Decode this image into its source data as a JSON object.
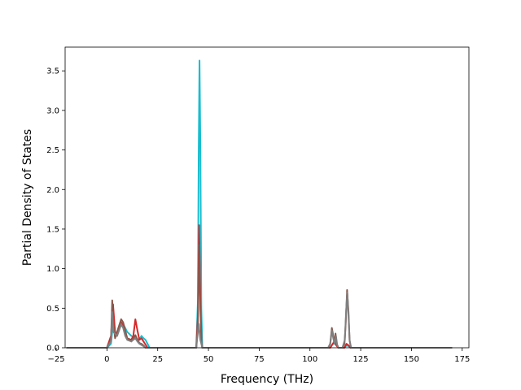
{
  "chart_data": {
    "type": "line",
    "title": "",
    "xlabel": "Frequency (THz)",
    "ylabel": "Partial Density of States",
    "xlim": [
      -20.6,
      178.3
    ],
    "ylim": [
      0.0,
      3.8
    ],
    "xticks": [
      -25,
      0,
      25,
      50,
      75,
      100,
      125,
      150,
      175
    ],
    "xtick_labels": [
      "−25",
      "0",
      "25",
      "50",
      "75",
      "100",
      "125",
      "150",
      "175"
    ],
    "yticks": [
      0.0,
      0.5,
      1.0,
      1.5,
      2.0,
      2.5,
      3.0,
      3.5
    ],
    "ytick_labels": [
      "0.0",
      "0.5",
      "1.0",
      "1.5",
      "2.0",
      "2.5",
      "3.0",
      "3.5"
    ],
    "grid": false,
    "legend": "none",
    "series": [
      {
        "color": "#17becf",
        "points": [
          [
            -20,
            0
          ],
          [
            0,
            0
          ],
          [
            2,
            0.05
          ],
          [
            3,
            0.3
          ],
          [
            4,
            0.15
          ],
          [
            6,
            0.25
          ],
          [
            8,
            0.3
          ],
          [
            10,
            0.2
          ],
          [
            12,
            0.15
          ],
          [
            14,
            0.12
          ],
          [
            16,
            0.1
          ],
          [
            17,
            0.15
          ],
          [
            18,
            0.12
          ],
          [
            19,
            0.1
          ],
          [
            20,
            0.05
          ],
          [
            21,
            0
          ],
          [
            44,
            0
          ],
          [
            44.8,
            0.6
          ],
          [
            45.2,
            2.5
          ],
          [
            45.6,
            3.63
          ],
          [
            46.0,
            2.6
          ],
          [
            46.5,
            0.5
          ],
          [
            47,
            0
          ],
          [
            110,
            0
          ],
          [
            111,
            0.04
          ],
          [
            112,
            0.06
          ],
          [
            113,
            0.03
          ],
          [
            114,
            0
          ],
          [
            117,
            0
          ],
          [
            118,
            0.03
          ],
          [
            119,
            0.02
          ],
          [
            120,
            0
          ],
          [
            170,
            0
          ]
        ]
      },
      {
        "color": "#d62728",
        "points": [
          [
            -20,
            0
          ],
          [
            0,
            0
          ],
          [
            2,
            0.15
          ],
          [
            3,
            0.55
          ],
          [
            4,
            0.2
          ],
          [
            5,
            0.15
          ],
          [
            6,
            0.25
          ],
          [
            7,
            0.32
          ],
          [
            8,
            0.28
          ],
          [
            9,
            0.2
          ],
          [
            10,
            0.12
          ],
          [
            12,
            0.1
          ],
          [
            13,
            0.15
          ],
          [
            14,
            0.36
          ],
          [
            15,
            0.22
          ],
          [
            16,
            0.1
          ],
          [
            17,
            0.12
          ],
          [
            18,
            0.08
          ],
          [
            19,
            0.04
          ],
          [
            20,
            0
          ],
          [
            44,
            0
          ],
          [
            44.8,
            0.4
          ],
          [
            45.4,
            1.55
          ],
          [
            46.0,
            0.6
          ],
          [
            46.6,
            0.05
          ],
          [
            47,
            0
          ],
          [
            110,
            0
          ],
          [
            111,
            0.04
          ],
          [
            112,
            0.08
          ],
          [
            113,
            0.03
          ],
          [
            114,
            0
          ],
          [
            117,
            0
          ],
          [
            118,
            0.05
          ],
          [
            119,
            0.03
          ],
          [
            120,
            0
          ],
          [
            170,
            0
          ]
        ]
      },
      {
        "color": "#8c564b",
        "points": [
          [
            -20,
            0
          ],
          [
            0,
            0
          ],
          [
            2,
            0.1
          ],
          [
            2.6,
            0.6
          ],
          [
            3.2,
            0.3
          ],
          [
            4,
            0.12
          ],
          [
            5,
            0.2
          ],
          [
            6,
            0.28
          ],
          [
            7,
            0.36
          ],
          [
            8,
            0.32
          ],
          [
            9,
            0.22
          ],
          [
            10,
            0.12
          ],
          [
            11,
            0.1
          ],
          [
            12,
            0.08
          ],
          [
            13,
            0.12
          ],
          [
            14,
            0.16
          ],
          [
            15,
            0.1
          ],
          [
            16,
            0.06
          ],
          [
            17,
            0.05
          ],
          [
            18,
            0.03
          ],
          [
            19,
            0
          ],
          [
            44,
            0
          ],
          [
            44.8,
            0.3
          ],
          [
            45.4,
            1.3
          ],
          [
            46.0,
            0.5
          ],
          [
            46.6,
            0.05
          ],
          [
            47,
            0
          ],
          [
            109,
            0
          ],
          [
            110,
            0.05
          ],
          [
            110.8,
            0.25
          ],
          [
            111.5,
            0.15
          ],
          [
            112,
            0.05
          ],
          [
            112.6,
            0.18
          ],
          [
            113.2,
            0.05
          ],
          [
            114,
            0
          ],
          [
            116,
            0
          ],
          [
            117,
            0.05
          ],
          [
            117.6,
            0.3
          ],
          [
            118.3,
            0.73
          ],
          [
            119,
            0.45
          ],
          [
            119.5,
            0.1
          ],
          [
            120.2,
            0
          ],
          [
            170,
            0
          ]
        ]
      },
      {
        "color": "#7f7f7f",
        "points": [
          [
            -20,
            0
          ],
          [
            0,
            0
          ],
          [
            2,
            0.08
          ],
          [
            2.6,
            0.45
          ],
          [
            3.2,
            0.2
          ],
          [
            5,
            0.15
          ],
          [
            6,
            0.22
          ],
          [
            7,
            0.3
          ],
          [
            8,
            0.25
          ],
          [
            9,
            0.15
          ],
          [
            10,
            0.1
          ],
          [
            12,
            0.08
          ],
          [
            13,
            0.1
          ],
          [
            14,
            0.12
          ],
          [
            15,
            0.08
          ],
          [
            16,
            0.05
          ],
          [
            18,
            0.02
          ],
          [
            19,
            0
          ],
          [
            44,
            0
          ],
          [
            45.2,
            0.3
          ],
          [
            46,
            0.1
          ],
          [
            47,
            0
          ],
          [
            109,
            0
          ],
          [
            110,
            0.05
          ],
          [
            110.8,
            0.22
          ],
          [
            111.5,
            0.12
          ],
          [
            112.2,
            0.05
          ],
          [
            112.8,
            0.15
          ],
          [
            113.4,
            0.04
          ],
          [
            114,
            0
          ],
          [
            116,
            0
          ],
          [
            117.2,
            0.1
          ],
          [
            117.8,
            0.45
          ],
          [
            118.4,
            0.7
          ],
          [
            119,
            0.4
          ],
          [
            119.6,
            0.08
          ],
          [
            120.3,
            0
          ],
          [
            170,
            0
          ]
        ]
      }
    ]
  }
}
